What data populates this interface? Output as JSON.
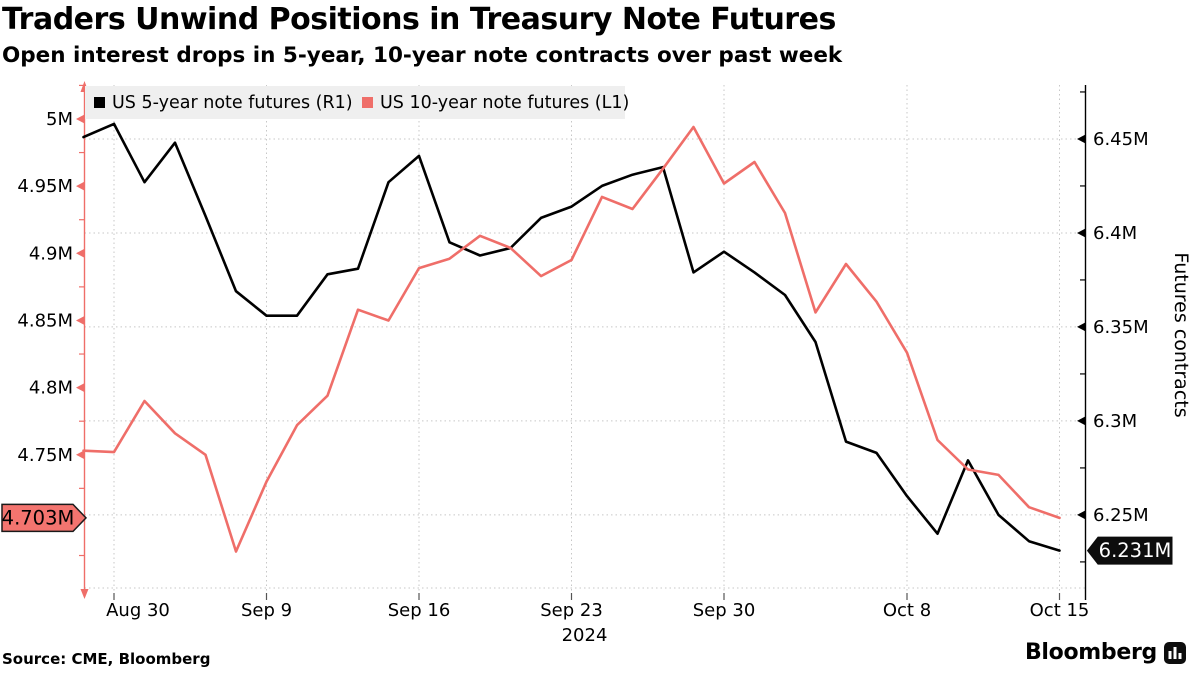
{
  "header": {
    "title": "Traders Unwind Positions in Treasury Note Futures",
    "subtitle": "Open interest drops in 5-year, 10-year note contracts over past week"
  },
  "legend": {
    "items": [
      {
        "label": "US 5-year note futures (R1)",
        "color": "#000000"
      },
      {
        "label": "US 10-year note futures (L1)",
        "color": "#ef6e69"
      }
    ]
  },
  "chart_data": {
    "type": "line",
    "title": "Traders Unwind Positions in Treasury Note Futures",
    "subtitle": "Open interest drops in 5-year, 10-year note contracts over past week",
    "grid": true,
    "legend_position": "top-left",
    "x": [
      "Aug 29",
      "Aug 30",
      "Sep 3",
      "Sep 4",
      "Sep 5",
      "Sep 6",
      "Sep 9",
      "Sep 10",
      "Sep 11",
      "Sep 12",
      "Sep 13",
      "Sep 16",
      "Sep 17",
      "Sep 18",
      "Sep 19",
      "Sep 20",
      "Sep 23",
      "Sep 24",
      "Sep 25",
      "Sep 26",
      "Sep 27",
      "Sep 30",
      "Oct 1",
      "Oct 2",
      "Oct 3",
      "Oct 4",
      "Oct 7",
      "Oct 8",
      "Oct 9",
      "Oct 10",
      "Oct 11",
      "Oct 14",
      "Oct 15"
    ],
    "x_ticks": [
      {
        "label": "Aug 30",
        "index": 1,
        "dx": 24
      },
      {
        "label": "Sep 9",
        "index": 6,
        "dx": 0
      },
      {
        "label": "Sep 16",
        "index": 11,
        "dx": 0
      },
      {
        "label": "Sep 23",
        "index": 16,
        "dx": 0
      },
      {
        "label": "Sep 30",
        "index": 21,
        "dx": 0
      },
      {
        "label": "Oct 8",
        "index": 27,
        "dx": 0
      },
      {
        "label": "Oct 15",
        "index": 32,
        "dx": 0
      }
    ],
    "x_axis_year": "2024",
    "series": [
      {
        "name": "US 5-year note futures (R1)",
        "axis": "right",
        "color": "#000000",
        "values": [
          6.451,
          6.458,
          6.427,
          6.448,
          6.409,
          6.369,
          6.356,
          6.356,
          6.378,
          6.381,
          6.427,
          6.441,
          6.395,
          6.388,
          6.392,
          6.408,
          6.414,
          6.425,
          6.431,
          6.435,
          6.379,
          6.39,
          6.379,
          6.367,
          6.342,
          6.289,
          6.283,
          6.26,
          6.24,
          6.279,
          6.25,
          6.236,
          6.231
        ],
        "badge": {
          "label": "6.231M",
          "fill": "#0d0d0d",
          "text_color": "#ffffff",
          "border": "#0d0d0d",
          "side": "right"
        }
      },
      {
        "name": "US 10-year note futures (L1)",
        "axis": "left",
        "color": "#ef6e69",
        "values": [
          4.753,
          4.752,
          4.79,
          4.766,
          4.75,
          4.678,
          4.73,
          4.772,
          4.794,
          4.858,
          4.85,
          4.889,
          4.896,
          4.913,
          4.904,
          4.883,
          4.895,
          4.942,
          4.933,
          4.963,
          4.994,
          4.952,
          4.968,
          4.93,
          4.856,
          4.892,
          4.864,
          4.826,
          4.761,
          4.739,
          4.735,
          4.711,
          4.703
        ],
        "badge": {
          "label": "4.703M",
          "fill": "#f3746f",
          "text_color": "#000000",
          "border": "#1a1a1a",
          "side": "left"
        }
      }
    ],
    "left_axis": {
      "color": "#ef6e69",
      "range": [
        4.6456,
        5.0253
      ],
      "minor_step": 0.025,
      "major_ticks": [
        {
          "label": "5M",
          "value": 5.0
        },
        {
          "label": "4.95M",
          "value": 4.95
        },
        {
          "label": "4.9M",
          "value": 4.9
        },
        {
          "label": "4.85M",
          "value": 4.85
        },
        {
          "label": "4.8M",
          "value": 4.8
        },
        {
          "label": "4.75M",
          "value": 4.75
        }
      ]
    },
    "right_axis": {
      "title": "Futures contracts",
      "color": "#000000",
      "range": [
        6.2074,
        6.4787
      ],
      "minor_step": 0.025,
      "major_ticks": [
        {
          "label": "6.45M",
          "value": 6.45
        },
        {
          "label": "6.4M",
          "value": 6.4
        },
        {
          "label": "6.35M",
          "value": 6.35
        },
        {
          "label": "6.3M",
          "value": 6.3
        },
        {
          "label": "6.25M",
          "value": 6.25
        }
      ]
    }
  },
  "footer": {
    "source": "Source: CME, Bloomberg",
    "brand": "Bloomberg"
  }
}
